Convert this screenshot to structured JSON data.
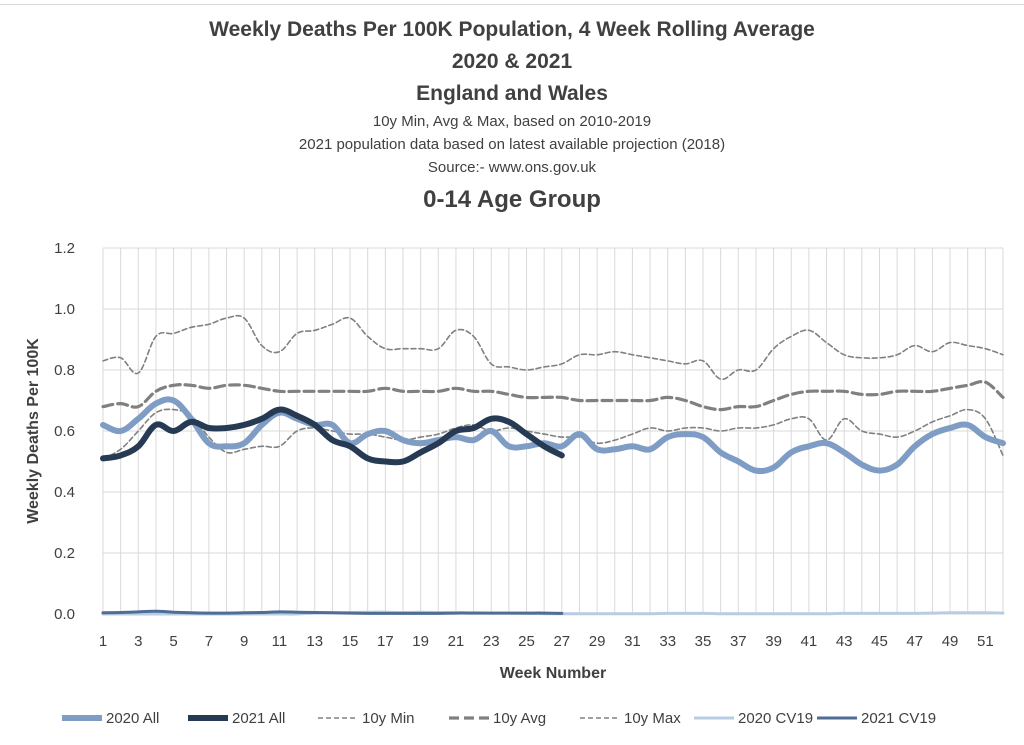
{
  "chart_data": {
    "type": "line",
    "title": "Weekly Deaths Per 100K Population, 4 Week Rolling Average",
    "subtitle_lines": [
      "2020 & 2021",
      "England and Wales",
      "10y Min, Avg & Max, based on 2010-2019",
      "2021 population data based on latest available projection (2018)",
      "Source:- www.ons.gov.uk"
    ],
    "subtitle_weights": [
      "bold",
      "bold",
      "normal",
      "normal",
      "normal"
    ],
    "group_title": "0-14 Age Group",
    "xlabel": "Week Number",
    "ylabel": "Weekly Deaths Per 100K",
    "xlim": [
      1,
      52
    ],
    "ylim": [
      0,
      1.2
    ],
    "yticks": [
      0.0,
      0.2,
      0.4,
      0.6,
      0.8,
      1.0,
      1.2
    ],
    "ytick_labels": [
      "0.0",
      "0.2",
      "0.4",
      "0.6",
      "0.8",
      "1.0",
      "1.2"
    ],
    "xticks": [
      1,
      3,
      5,
      7,
      9,
      11,
      13,
      15,
      17,
      19,
      21,
      23,
      25,
      27,
      29,
      31,
      33,
      35,
      37,
      39,
      41,
      43,
      45,
      47,
      49,
      51
    ],
    "grid": true,
    "legend_position": "bottom",
    "series": [
      {
        "name": "2020 All",
        "color": "#7f9dc4",
        "width": 6,
        "dash": "",
        "x": [
          1,
          2,
          3,
          4,
          5,
          6,
          7,
          8,
          9,
          10,
          11,
          12,
          13,
          14,
          15,
          16,
          17,
          18,
          19,
          20,
          21,
          22,
          23,
          24,
          25,
          26,
          27,
          28,
          29,
          30,
          31,
          32,
          33,
          34,
          35,
          36,
          37,
          38,
          39,
          40,
          41,
          42,
          43,
          44,
          45,
          46,
          47,
          48,
          49,
          50,
          51,
          52
        ],
        "y": [
          0.62,
          0.6,
          0.64,
          0.69,
          0.7,
          0.64,
          0.56,
          0.55,
          0.56,
          0.62,
          0.66,
          0.64,
          0.62,
          0.62,
          0.56,
          0.59,
          0.6,
          0.57,
          0.56,
          0.57,
          0.58,
          0.57,
          0.6,
          0.55,
          0.55,
          0.56,
          0.55,
          0.59,
          0.54,
          0.54,
          0.55,
          0.54,
          0.58,
          0.59,
          0.58,
          0.53,
          0.5,
          0.47,
          0.48,
          0.53,
          0.55,
          0.56,
          0.53,
          0.49,
          0.47,
          0.49,
          0.55,
          0.59,
          0.61,
          0.62,
          0.58,
          0.56
        ]
      },
      {
        "name": "2021 All",
        "color": "#263a54",
        "width": 6,
        "dash": "",
        "x": [
          1,
          2,
          3,
          4,
          5,
          6,
          7,
          8,
          9,
          10,
          11,
          12,
          13,
          14,
          15,
          16,
          17,
          18,
          19,
          20,
          21,
          22,
          23,
          24,
          25,
          26,
          27
        ],
        "y": [
          0.51,
          0.52,
          0.55,
          0.62,
          0.6,
          0.63,
          0.61,
          0.61,
          0.62,
          0.64,
          0.67,
          0.65,
          0.62,
          0.57,
          0.55,
          0.51,
          0.5,
          0.5,
          0.53,
          0.56,
          0.6,
          0.61,
          0.64,
          0.63,
          0.59,
          0.55,
          0.52
        ]
      },
      {
        "name": "10y Min",
        "color": "#808080",
        "width": 1.6,
        "dash": "5,3",
        "x": [
          1,
          2,
          3,
          4,
          5,
          6,
          7,
          8,
          9,
          10,
          11,
          12,
          13,
          14,
          15,
          16,
          17,
          18,
          19,
          20,
          21,
          22,
          23,
          24,
          25,
          26,
          27,
          28,
          29,
          30,
          31,
          32,
          33,
          34,
          35,
          36,
          37,
          38,
          39,
          40,
          41,
          42,
          43,
          44,
          45,
          46,
          47,
          48,
          49,
          50,
          51,
          52
        ],
        "y": [
          0.51,
          0.54,
          0.6,
          0.66,
          0.67,
          0.65,
          0.58,
          0.53,
          0.54,
          0.55,
          0.55,
          0.6,
          0.61,
          0.6,
          0.59,
          0.59,
          0.58,
          0.57,
          0.58,
          0.59,
          0.61,
          0.62,
          0.6,
          0.61,
          0.6,
          0.59,
          0.58,
          0.58,
          0.56,
          0.57,
          0.59,
          0.61,
          0.6,
          0.61,
          0.61,
          0.6,
          0.61,
          0.61,
          0.62,
          0.64,
          0.64,
          0.57,
          0.64,
          0.6,
          0.59,
          0.58,
          0.6,
          0.63,
          0.65,
          0.67,
          0.64,
          0.52
        ]
      },
      {
        "name": "10y Avg",
        "color": "#808080",
        "width": 3.2,
        "dash": "10,5",
        "x": [
          1,
          2,
          3,
          4,
          5,
          6,
          7,
          8,
          9,
          10,
          11,
          12,
          13,
          14,
          15,
          16,
          17,
          18,
          19,
          20,
          21,
          22,
          23,
          24,
          25,
          26,
          27,
          28,
          29,
          30,
          31,
          32,
          33,
          34,
          35,
          36,
          37,
          38,
          39,
          40,
          41,
          42,
          43,
          44,
          45,
          46,
          47,
          48,
          49,
          50,
          51,
          52
        ],
        "y": [
          0.68,
          0.69,
          0.68,
          0.73,
          0.75,
          0.75,
          0.74,
          0.75,
          0.75,
          0.74,
          0.73,
          0.73,
          0.73,
          0.73,
          0.73,
          0.73,
          0.74,
          0.73,
          0.73,
          0.73,
          0.74,
          0.73,
          0.73,
          0.72,
          0.71,
          0.71,
          0.71,
          0.7,
          0.7,
          0.7,
          0.7,
          0.7,
          0.71,
          0.7,
          0.68,
          0.67,
          0.68,
          0.68,
          0.7,
          0.72,
          0.73,
          0.73,
          0.73,
          0.72,
          0.72,
          0.73,
          0.73,
          0.73,
          0.74,
          0.75,
          0.76,
          0.71
        ]
      },
      {
        "name": "10y Max",
        "color": "#808080",
        "width": 1.6,
        "dash": "5,3",
        "x": [
          1,
          2,
          3,
          4,
          5,
          6,
          7,
          8,
          9,
          10,
          11,
          12,
          13,
          14,
          15,
          16,
          17,
          18,
          19,
          20,
          21,
          22,
          23,
          24,
          25,
          26,
          27,
          28,
          29,
          30,
          31,
          32,
          33,
          34,
          35,
          36,
          37,
          38,
          39,
          40,
          41,
          42,
          43,
          44,
          45,
          46,
          47,
          48,
          49,
          50,
          51,
          52
        ],
        "y": [
          0.83,
          0.84,
          0.79,
          0.91,
          0.92,
          0.94,
          0.95,
          0.97,
          0.97,
          0.88,
          0.86,
          0.92,
          0.93,
          0.95,
          0.97,
          0.91,
          0.87,
          0.87,
          0.87,
          0.87,
          0.93,
          0.91,
          0.82,
          0.81,
          0.8,
          0.81,
          0.82,
          0.85,
          0.85,
          0.86,
          0.85,
          0.84,
          0.83,
          0.82,
          0.83,
          0.77,
          0.8,
          0.8,
          0.87,
          0.91,
          0.93,
          0.89,
          0.85,
          0.84,
          0.84,
          0.85,
          0.88,
          0.86,
          0.89,
          0.88,
          0.87,
          0.85
        ]
      },
      {
        "name": "2020 CV19",
        "color": "#b8cce4",
        "width": 3,
        "dash": "",
        "x": [
          1,
          2,
          3,
          4,
          5,
          6,
          7,
          8,
          9,
          10,
          11,
          12,
          13,
          14,
          15,
          16,
          17,
          18,
          19,
          20,
          21,
          22,
          23,
          24,
          25,
          26,
          27,
          28,
          29,
          30,
          31,
          32,
          33,
          34,
          35,
          36,
          37,
          38,
          39,
          40,
          41,
          42,
          43,
          44,
          45,
          46,
          47,
          48,
          49,
          50,
          51,
          52
        ],
        "y": [
          0,
          0,
          0,
          0,
          0,
          0,
          0,
          0,
          0,
          0,
          0,
          0,
          0.003,
          0.004,
          0.005,
          0.006,
          0.006,
          0.005,
          0.006,
          0.005,
          0.004,
          0.004,
          0.003,
          0.003,
          0.002,
          0.001,
          0.001,
          0.001,
          0.001,
          0.001,
          0.001,
          0.001,
          0.002,
          0.002,
          0.002,
          0.001,
          0.001,
          0.001,
          0.001,
          0.001,
          0.001,
          0.001,
          0.002,
          0.002,
          0.002,
          0.002,
          0.002,
          0.003,
          0.004,
          0.004,
          0.004,
          0.003
        ]
      },
      {
        "name": "2021 CV19",
        "color": "#4f6d95",
        "width": 3,
        "dash": "",
        "x": [
          1,
          2,
          3,
          4,
          5,
          6,
          7,
          8,
          9,
          10,
          11,
          12,
          13,
          14,
          15,
          16,
          17,
          18,
          19,
          20,
          21,
          22,
          23,
          24,
          25,
          26,
          27
        ],
        "y": [
          0.004,
          0.005,
          0.007,
          0.009,
          0.006,
          0.004,
          0.003,
          0.003,
          0.004,
          0.005,
          0.007,
          0.006,
          0.005,
          0.004,
          0.003,
          0.002,
          0.002,
          0.002,
          0.002,
          0.002,
          0.003,
          0.003,
          0.003,
          0.003,
          0.003,
          0.003,
          0.002
        ]
      }
    ]
  }
}
